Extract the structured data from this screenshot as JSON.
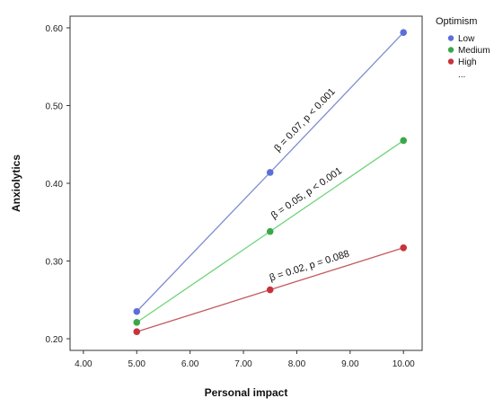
{
  "chart_data": {
    "type": "line",
    "xlabel": "Personal impact",
    "ylabel": "Anxiolytics",
    "xlim": [
      3.75,
      10.35
    ],
    "ylim": [
      0.185,
      0.615
    ],
    "x_ticks": [
      "4.00",
      "5.00",
      "6.00",
      "7.00",
      "8.00",
      "9.00",
      "10.00"
    ],
    "y_ticks": [
      "0.20",
      "0.30",
      "0.40",
      "0.50",
      "0.60"
    ],
    "grid": false,
    "legend": {
      "title": "Optimism",
      "placement": "top-right",
      "more": "..."
    },
    "series": [
      {
        "name": "Low",
        "color": "#5b6fd6",
        "line_color": "#7f8ccf",
        "x": [
          5.0,
          7.5,
          10.0
        ],
        "y": [
          0.235,
          0.414,
          0.594
        ],
        "annotation": "β = 0.07, p < 0.001"
      },
      {
        "name": "Medium",
        "color": "#3aa84a",
        "line_color": "#6fd37a",
        "x": [
          5.0,
          7.5,
          10.0
        ],
        "y": [
          0.221,
          0.338,
          0.455
        ],
        "annotation": "β = 0.05, p < 0.001"
      },
      {
        "name": "High",
        "color": "#c8323a",
        "line_color": "#c35a5f",
        "x": [
          5.0,
          7.5,
          10.0
        ],
        "y": [
          0.209,
          0.263,
          0.317
        ],
        "annotation": "β = 0.02, p = 0.088"
      }
    ]
  }
}
